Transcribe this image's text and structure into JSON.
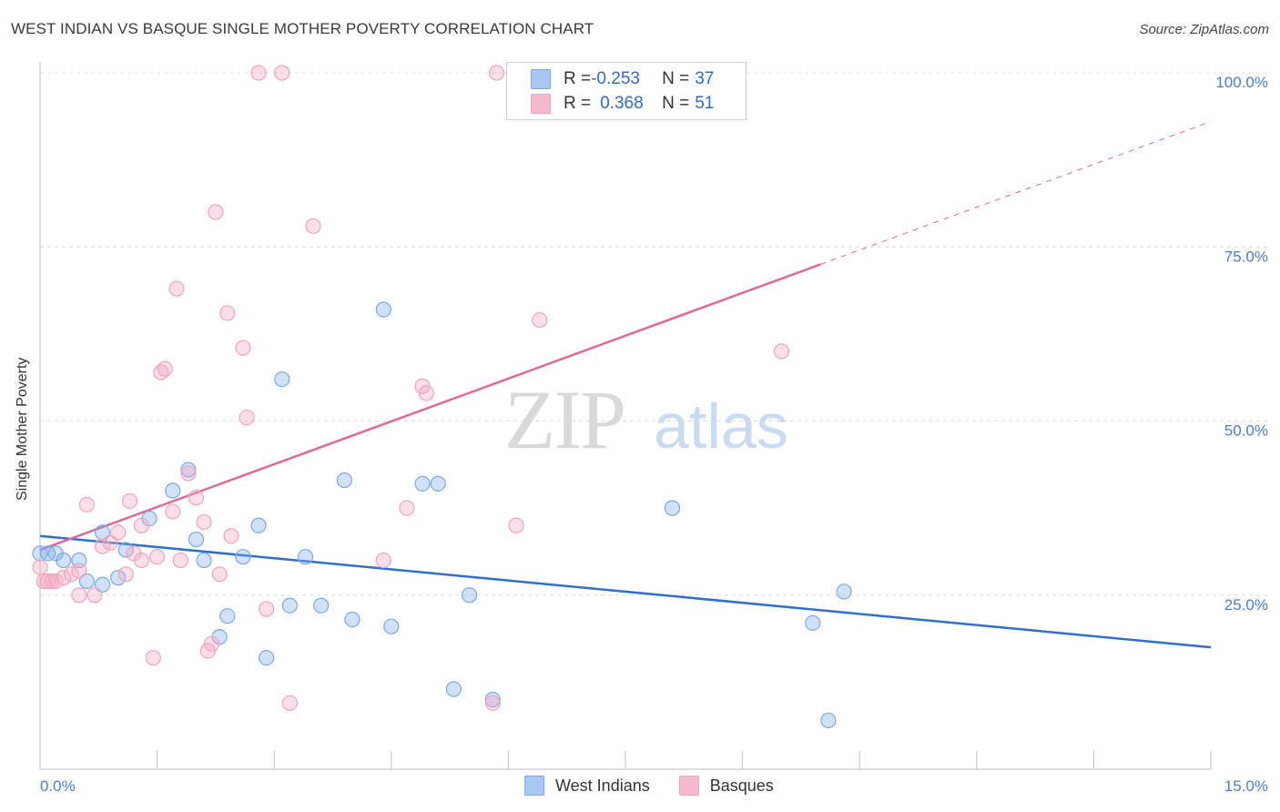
{
  "header": {
    "title": "WEST INDIAN VS BASQUE SINGLE MOTHER POVERTY CORRELATION CHART",
    "source": "Source: ZipAtlas.com"
  },
  "watermark": {
    "zip": "ZIP",
    "atlas": "atlas"
  },
  "legend": {
    "rows": [
      {
        "r_label": "R = ",
        "r_value": "-0.253",
        "n_label": "N = ",
        "n_value": "37",
        "color": "#a9c8f0"
      },
      {
        "r_label": "R = ",
        "r_value": "0.368",
        "n_label": "N = ",
        "n_value": "51",
        "color": "#f5b8cc"
      }
    ]
  },
  "bottom_legend": [
    "West Indians",
    "Basques"
  ],
  "chart_data": {
    "type": "scatter",
    "title": "WEST INDIAN VS BASQUE SINGLE MOTHER POVERTY CORRELATION CHART",
    "xlabel": "",
    "ylabel": "Single Mother Poverty",
    "xlim": [
      0,
      15
    ],
    "ylim": [
      0,
      100
    ],
    "x_tick_labels": [
      "0.0%",
      "15.0%"
    ],
    "y_tick_labels": [
      "25.0%",
      "50.0%",
      "75.0%",
      "100.0%"
    ],
    "y_ticks": [
      25,
      50,
      75,
      100
    ],
    "grid": true,
    "legend_position": "top-center",
    "series": [
      {
        "name": "West Indians",
        "color": "#7aaae8",
        "trend": {
          "x": [
            0,
            15
          ],
          "y": [
            33.5,
            17.5
          ],
          "color": "#2f6fd0"
        },
        "points": [
          [
            0.1,
            31
          ],
          [
            0.2,
            31
          ],
          [
            0.3,
            30
          ],
          [
            0.5,
            30
          ],
          [
            0.6,
            27
          ],
          [
            0.8,
            34
          ],
          [
            0.8,
            26.5
          ],
          [
            1.0,
            27.5
          ],
          [
            1.4,
            36
          ],
          [
            1.1,
            31.5
          ],
          [
            1.7,
            40
          ],
          [
            1.9,
            43
          ],
          [
            2.0,
            33
          ],
          [
            2.1,
            30
          ],
          [
            2.4,
            22
          ],
          [
            2.3,
            19
          ],
          [
            2.6,
            30.5
          ],
          [
            2.8,
            35
          ],
          [
            2.9,
            16
          ],
          [
            3.1,
            56
          ],
          [
            3.2,
            23.5
          ],
          [
            3.4,
            30.5
          ],
          [
            3.6,
            23.5
          ],
          [
            3.9,
            41.5
          ],
          [
            4.0,
            21.5
          ],
          [
            4.4,
            66
          ],
          [
            4.5,
            20.5
          ],
          [
            4.9,
            41
          ],
          [
            5.1,
            41
          ],
          [
            5.3,
            11.5
          ],
          [
            5.5,
            25
          ],
          [
            5.8,
            10
          ],
          [
            8.1,
            37.5
          ],
          [
            9.9,
            21
          ],
          [
            10.1,
            7
          ],
          [
            10.3,
            25.5
          ],
          [
            0.0,
            31
          ]
        ]
      },
      {
        "name": "Basques",
        "color": "#f3a4bd",
        "trend": {
          "x": [
            0,
            15
          ],
          "y": [
            31.5,
            93
          ],
          "solid_until_x": 10.0,
          "color": "#e06a93"
        },
        "points": [
          [
            0.0,
            29
          ],
          [
            0.1,
            27
          ],
          [
            0.2,
            27
          ],
          [
            0.3,
            27.5
          ],
          [
            0.4,
            28
          ],
          [
            0.5,
            25
          ],
          [
            0.5,
            28.5
          ],
          [
            0.6,
            38
          ],
          [
            0.7,
            25
          ],
          [
            0.8,
            32
          ],
          [
            0.9,
            32.5
          ],
          [
            1.0,
            34
          ],
          [
            1.1,
            28
          ],
          [
            1.15,
            38.5
          ],
          [
            1.2,
            31
          ],
          [
            1.3,
            35
          ],
          [
            1.3,
            30
          ],
          [
            1.45,
            16
          ],
          [
            1.5,
            30.5
          ],
          [
            1.55,
            57
          ],
          [
            1.6,
            57.5
          ],
          [
            1.7,
            37
          ],
          [
            1.75,
            69
          ],
          [
            1.8,
            30
          ],
          [
            1.9,
            42.5
          ],
          [
            2.0,
            39
          ],
          [
            2.1,
            35.5
          ],
          [
            2.15,
            17
          ],
          [
            2.2,
            18
          ],
          [
            2.25,
            80
          ],
          [
            2.3,
            28
          ],
          [
            2.4,
            65.5
          ],
          [
            2.45,
            33.5
          ],
          [
            2.6,
            60.5
          ],
          [
            2.65,
            50.5
          ],
          [
            2.8,
            100
          ],
          [
            2.9,
            23
          ],
          [
            3.1,
            100
          ],
          [
            3.2,
            9.5
          ],
          [
            3.5,
            78
          ],
          [
            4.4,
            30
          ],
          [
            4.7,
            37.5
          ],
          [
            4.9,
            55
          ],
          [
            4.95,
            54
          ],
          [
            5.8,
            9.5
          ],
          [
            5.85,
            100
          ],
          [
            6.1,
            35
          ],
          [
            6.4,
            64.5
          ],
          [
            9.5,
            60
          ],
          [
            0.05,
            27
          ],
          [
            0.15,
            27
          ]
        ]
      }
    ]
  }
}
